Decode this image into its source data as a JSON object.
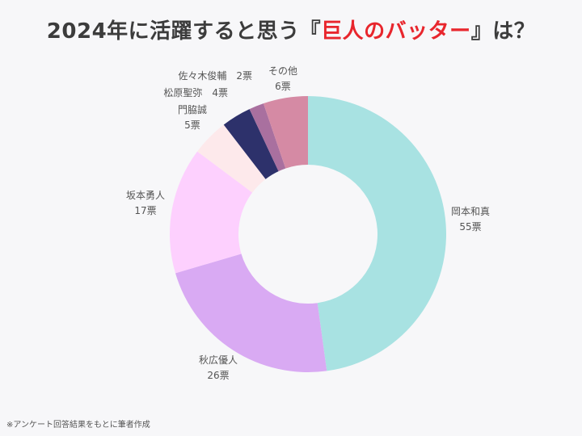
{
  "title": {
    "prefix": "2024年に活躍すると思う『",
    "highlight": "巨人のバッター",
    "suffix": "』は？",
    "highlight_color": "#e8262d"
  },
  "chart_data": {
    "type": "pie",
    "donut": true,
    "unit": "票",
    "slices": [
      {
        "name": "岡本和真",
        "value": 55,
        "color": "#a8e2e2"
      },
      {
        "name": "秋広優人",
        "value": 26,
        "color": "#d9aaf3"
      },
      {
        "name": "坂本勇人",
        "value": 17,
        "color": "#fdd0fe"
      },
      {
        "name": "門脇誠",
        "value": 5,
        "color": "#fde9eb"
      },
      {
        "name": "松原聖弥",
        "value": 4,
        "color": "#2d316b"
      },
      {
        "name": "佐々木俊輔",
        "value": 2,
        "color": "#a9709f"
      },
      {
        "name": "その他",
        "value": 6,
        "color": "#d58aa4"
      }
    ]
  },
  "footnote": "※アンケート回答結果をもとに筆者作成"
}
